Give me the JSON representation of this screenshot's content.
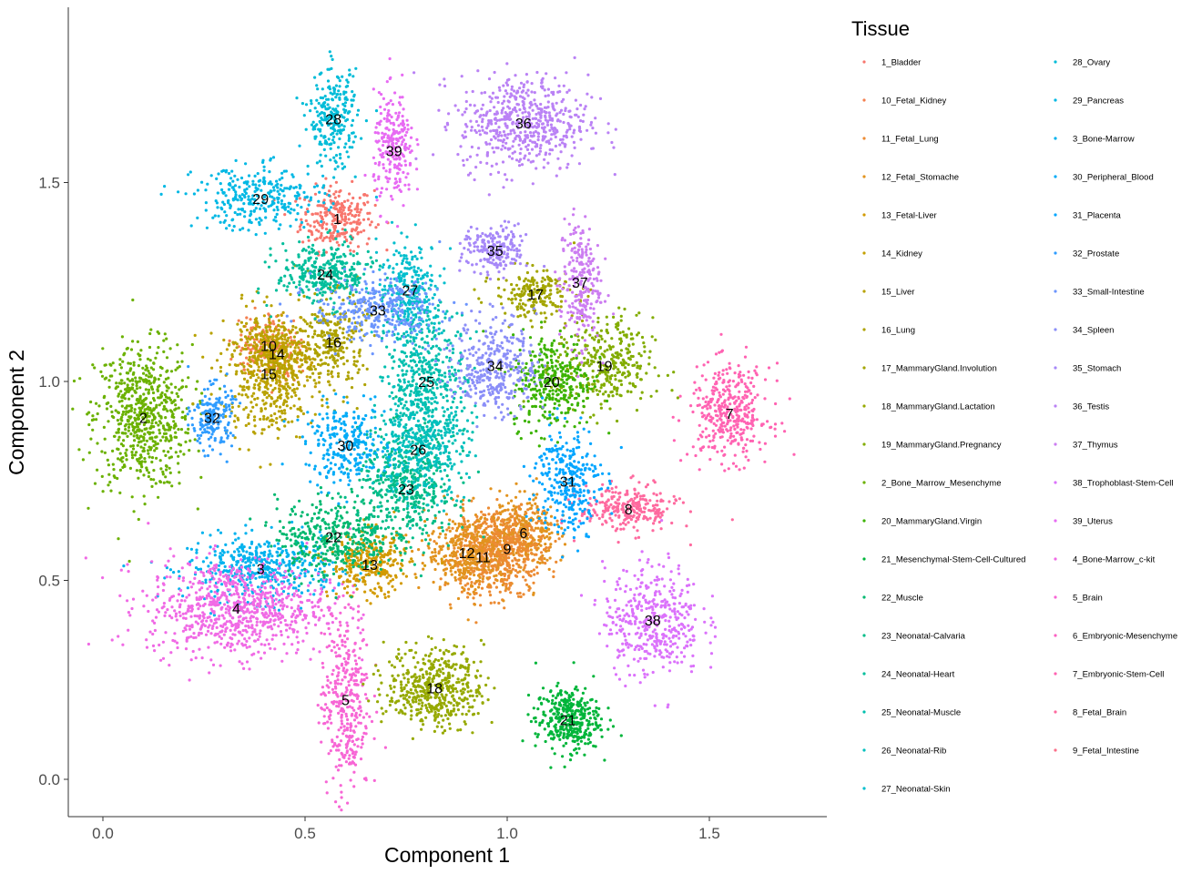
{
  "chart_data": {
    "type": "scatter",
    "xlabel": "Component 1",
    "ylabel": "Component 2",
    "xlim": [
      -0.08,
      1.8
    ],
    "ylim": [
      -0.1,
      1.95
    ],
    "x_ticks": [
      0.0,
      0.5,
      1.0,
      1.5
    ],
    "x_tick_labels": [
      "0.0",
      "0.5",
      "1.0",
      "1.5"
    ],
    "y_ticks": [
      0.0,
      0.5,
      1.0,
      1.5
    ],
    "y_tick_labels": [
      "0.0",
      "0.5",
      "1.0",
      "1.5"
    ],
    "grid": false,
    "legend": {
      "title": "Tissue",
      "placement": "right",
      "columns": 2,
      "entries": [
        {
          "name": "1_Bladder",
          "color": "#F8766D"
        },
        {
          "name": "10_Fetal_Kidney",
          "color": "#F47F4F"
        },
        {
          "name": "11_Fetal_Lung",
          "color": "#EC8B33"
        },
        {
          "name": "12_Fetal_Stomache",
          "color": "#E2931E"
        },
        {
          "name": "13_Fetal-Liver",
          "color": "#D29A00"
        },
        {
          "name": "14_Kidney",
          "color": "#C4A000"
        },
        {
          "name": "15_Liver",
          "color": "#B8A200"
        },
        {
          "name": "16_Lung",
          "color": "#AEA200"
        },
        {
          "name": "17_MammaryGland.Involution",
          "color": "#A3A500"
        },
        {
          "name": "18_MammaryGland.Lactation",
          "color": "#96A900"
        },
        {
          "name": "19_MammaryGland.Pregnancy",
          "color": "#82AC00"
        },
        {
          "name": "2_Bone_Marrow_Mesenchyme",
          "color": "#6BB100"
        },
        {
          "name": "20_MammaryGland.Virgin",
          "color": "#3BB300"
        },
        {
          "name": "21_Mesenchymal-Stem-Cell-Cultured",
          "color": "#00B53A"
        },
        {
          "name": "22_Muscle",
          "color": "#00B870"
        },
        {
          "name": "23_Neonatal-Calvaria",
          "color": "#00BC88"
        },
        {
          "name": "24_Neonatal-Heart",
          "color": "#00BE9B"
        },
        {
          "name": "25_Neonatal-Muscle",
          "color": "#00BFAE"
        },
        {
          "name": "26_Neonatal-Rib",
          "color": "#00C0BE"
        },
        {
          "name": "27_Neonatal-Skin",
          "color": "#00BECD"
        },
        {
          "name": "28_Ovary",
          "color": "#00BCD8"
        },
        {
          "name": "29_Pancreas",
          "color": "#00B8E4"
        },
        {
          "name": "3_Bone-Marrow",
          "color": "#00B2EE"
        },
        {
          "name": "30_Peripheral_Blood",
          "color": "#00ABF7"
        },
        {
          "name": "31_Placenta",
          "color": "#00A5FF"
        },
        {
          "name": "32_Prostate",
          "color": "#2F9CFF"
        },
        {
          "name": "33_Small-Intestine",
          "color": "#6C95FD"
        },
        {
          "name": "34_Spleen",
          "color": "#8B8FF8"
        },
        {
          "name": "35_Stomach",
          "color": "#A688F8"
        },
        {
          "name": "36_Testis",
          "color": "#BA82F5"
        },
        {
          "name": "37_Thymus",
          "color": "#CC7DF1"
        },
        {
          "name": "38_Trophoblast-Stem-Cell",
          "color": "#DB72FB"
        },
        {
          "name": "39_Uterus",
          "color": "#E76BF3"
        },
        {
          "name": "4_Bone-Marrow_c-kit",
          "color": "#F06AE5"
        },
        {
          "name": "5_Brain",
          "color": "#F766D5"
        },
        {
          "name": "6_Embryonic-Mesenchyme",
          "color": "#FB61C2"
        },
        {
          "name": "7_Embryonic-Stem-Cell",
          "color": "#FF63B2"
        },
        {
          "name": "8_Fetal_Brain",
          "color": "#FE6A9F"
        },
        {
          "name": "9_Fetal_Intestine",
          "color": "#FB708A"
        }
      ]
    },
    "clusters": [
      {
        "label": "1",
        "x": 0.58,
        "y": 1.41,
        "sx": 0.045,
        "sy": 0.04,
        "n": 260,
        "color": "#F8766D"
      },
      {
        "label": "2",
        "x": 0.1,
        "y": 0.91,
        "sx": 0.06,
        "sy": 0.09,
        "n": 650,
        "color": "#6BB100"
      },
      {
        "label": "3",
        "x": 0.39,
        "y": 0.53,
        "sx": 0.09,
        "sy": 0.04,
        "n": 450,
        "color": "#00B2EE"
      },
      {
        "label": "4",
        "x": 0.33,
        "y": 0.43,
        "sx": 0.11,
        "sy": 0.06,
        "n": 800,
        "color": "#F06AE5"
      },
      {
        "label": "5",
        "x": 0.6,
        "y": 0.2,
        "sx": 0.03,
        "sy": 0.12,
        "n": 360,
        "color": "#F766D5"
      },
      {
        "label": "6",
        "x": 1.04,
        "y": 0.62,
        "sx": 0.04,
        "sy": 0.05,
        "n": 300,
        "color": "#E2931E"
      },
      {
        "label": "7",
        "x": 1.55,
        "y": 0.92,
        "sx": 0.05,
        "sy": 0.06,
        "n": 380,
        "color": "#FF63B2"
      },
      {
        "label": "8",
        "x": 1.3,
        "y": 0.68,
        "sx": 0.06,
        "sy": 0.03,
        "n": 260,
        "color": "#FE6A9F"
      },
      {
        "label": "9",
        "x": 1.0,
        "y": 0.58,
        "sx": 0.05,
        "sy": 0.05,
        "n": 320,
        "color": "#EC8B33"
      },
      {
        "label": "10",
        "x": 0.41,
        "y": 1.09,
        "sx": 0.04,
        "sy": 0.04,
        "n": 200,
        "color": "#F47F4F"
      },
      {
        "label": "11",
        "x": 0.94,
        "y": 0.56,
        "sx": 0.05,
        "sy": 0.05,
        "n": 320,
        "color": "#EC8B33"
      },
      {
        "label": "12",
        "x": 0.9,
        "y": 0.57,
        "sx": 0.05,
        "sy": 0.05,
        "n": 320,
        "color": "#E2931E"
      },
      {
        "label": "13",
        "x": 0.66,
        "y": 0.54,
        "sx": 0.05,
        "sy": 0.04,
        "n": 300,
        "color": "#D29A00"
      },
      {
        "label": "14",
        "x": 0.43,
        "y": 1.07,
        "sx": 0.04,
        "sy": 0.04,
        "n": 220,
        "color": "#C4A000"
      },
      {
        "label": "15",
        "x": 0.41,
        "y": 1.02,
        "sx": 0.06,
        "sy": 0.08,
        "n": 450,
        "color": "#B8A200"
      },
      {
        "label": "16",
        "x": 0.57,
        "y": 1.1,
        "sx": 0.04,
        "sy": 0.06,
        "n": 260,
        "color": "#AEA200"
      },
      {
        "label": "17",
        "x": 1.07,
        "y": 1.22,
        "sx": 0.05,
        "sy": 0.03,
        "n": 200,
        "color": "#A3A500"
      },
      {
        "label": "18",
        "x": 0.82,
        "y": 0.23,
        "sx": 0.06,
        "sy": 0.05,
        "n": 480,
        "color": "#96A900"
      },
      {
        "label": "19",
        "x": 1.24,
        "y": 1.04,
        "sx": 0.06,
        "sy": 0.06,
        "n": 340,
        "color": "#82AC00"
      },
      {
        "label": "20",
        "x": 1.11,
        "y": 1.0,
        "sx": 0.05,
        "sy": 0.06,
        "n": 320,
        "color": "#3BB300"
      },
      {
        "label": "21",
        "x": 1.15,
        "y": 0.15,
        "sx": 0.04,
        "sy": 0.04,
        "n": 360,
        "color": "#00B53A"
      },
      {
        "label": "22",
        "x": 0.57,
        "y": 0.61,
        "sx": 0.07,
        "sy": 0.05,
        "n": 360,
        "color": "#00B870"
      },
      {
        "label": "23",
        "x": 0.75,
        "y": 0.73,
        "sx": 0.06,
        "sy": 0.07,
        "n": 460,
        "color": "#00BC88"
      },
      {
        "label": "24",
        "x": 0.55,
        "y": 1.27,
        "sx": 0.06,
        "sy": 0.04,
        "n": 320,
        "color": "#00BE9B"
      },
      {
        "label": "25",
        "x": 0.8,
        "y": 1.0,
        "sx": 0.05,
        "sy": 0.09,
        "n": 460,
        "color": "#00BFAE"
      },
      {
        "label": "26",
        "x": 0.78,
        "y": 0.83,
        "sx": 0.06,
        "sy": 0.06,
        "n": 360,
        "color": "#00C0BE"
      },
      {
        "label": "27",
        "x": 0.76,
        "y": 1.23,
        "sx": 0.04,
        "sy": 0.06,
        "n": 260,
        "color": "#00BECD"
      },
      {
        "label": "28",
        "x": 0.57,
        "y": 1.66,
        "sx": 0.03,
        "sy": 0.06,
        "n": 260,
        "color": "#00BCD8"
      },
      {
        "label": "29",
        "x": 0.39,
        "y": 1.46,
        "sx": 0.08,
        "sy": 0.04,
        "n": 300,
        "color": "#00B8E4"
      },
      {
        "label": "30",
        "x": 0.6,
        "y": 0.84,
        "sx": 0.05,
        "sy": 0.05,
        "n": 260,
        "color": "#00ABF7"
      },
      {
        "label": "31",
        "x": 1.15,
        "y": 0.75,
        "sx": 0.04,
        "sy": 0.07,
        "n": 300,
        "color": "#00A5FF"
      },
      {
        "label": "32",
        "x": 0.27,
        "y": 0.91,
        "sx": 0.025,
        "sy": 0.04,
        "n": 180,
        "color": "#2F9CFF"
      },
      {
        "label": "33",
        "x": 0.68,
        "y": 1.18,
        "sx": 0.08,
        "sy": 0.04,
        "n": 320,
        "color": "#6C95FD"
      },
      {
        "label": "34",
        "x": 0.97,
        "y": 1.04,
        "sx": 0.05,
        "sy": 0.06,
        "n": 340,
        "color": "#8B8FF8"
      },
      {
        "label": "35",
        "x": 0.97,
        "y": 1.33,
        "sx": 0.04,
        "sy": 0.03,
        "n": 200,
        "color": "#A688F8"
      },
      {
        "label": "36",
        "x": 1.04,
        "y": 1.65,
        "sx": 0.08,
        "sy": 0.06,
        "n": 560,
        "color": "#BA82F5"
      },
      {
        "label": "37",
        "x": 1.18,
        "y": 1.25,
        "sx": 0.025,
        "sy": 0.08,
        "n": 240,
        "color": "#CC7DF1"
      },
      {
        "label": "38",
        "x": 1.36,
        "y": 0.4,
        "sx": 0.06,
        "sy": 0.07,
        "n": 420,
        "color": "#DB72FB"
      },
      {
        "label": "39",
        "x": 0.72,
        "y": 1.58,
        "sx": 0.025,
        "sy": 0.07,
        "n": 240,
        "color": "#E76BF3"
      }
    ]
  }
}
